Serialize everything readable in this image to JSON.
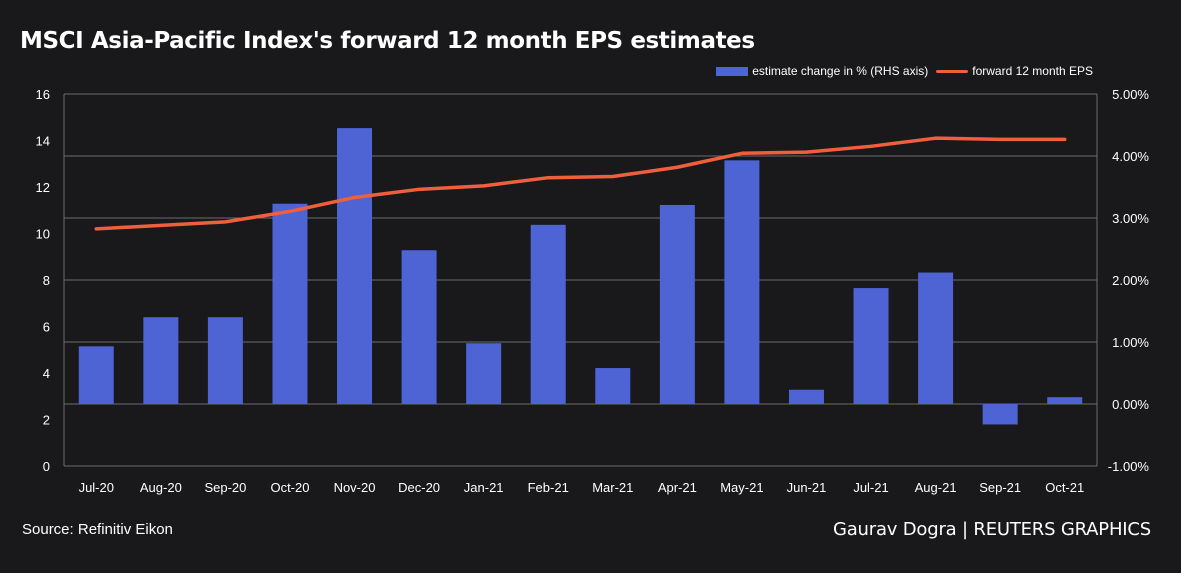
{
  "title": "MSCI Asia-Pacific Index's forward 12 month EPS estimates",
  "source": "Source: Refinitiv Eikon",
  "credit": "Gaurav Dogra | REUTERS GRAPHICS",
  "colors": {
    "background": "#19191c",
    "bar": "#4e63d4",
    "line": "#ef5f3b",
    "grid": "#6b6b70"
  },
  "chart_data": {
    "type": "bar+line",
    "title": "MSCI Asia-Pacific Index's forward 12 month EPS estimates",
    "categories": [
      "Jul-20",
      "Aug-20",
      "Sep-20",
      "Oct-20",
      "Nov-20",
      "Dec-20",
      "Jan-21",
      "Feb-21",
      "Mar-21",
      "Apr-21",
      "May-21",
      "Jun-21",
      "Jul-21",
      "Aug-21",
      "Sep-21",
      "Oct-21"
    ],
    "series": [
      {
        "name": "estimate change in % (RHS axis)",
        "type": "bar",
        "axis": "right",
        "values": [
          0.93,
          1.4,
          1.4,
          3.23,
          4.45,
          2.48,
          0.98,
          2.89,
          0.58,
          3.21,
          3.93,
          0.23,
          1.87,
          2.12,
          -0.33,
          0.11
        ]
      },
      {
        "name": "forward 12 month EPS",
        "type": "line",
        "axis": "left",
        "values": [
          10.2,
          10.35,
          10.5,
          10.95,
          11.55,
          11.9,
          12.05,
          12.4,
          12.45,
          12.85,
          13.45,
          13.5,
          13.75,
          14.1,
          14.05,
          14.05
        ]
      }
    ],
    "y_left": {
      "min": 0,
      "max": 16,
      "ticks": [
        "0",
        "2",
        "4",
        "6",
        "8",
        "10",
        "12",
        "14",
        "16"
      ]
    },
    "y_right": {
      "min": -1.0,
      "max": 5.0,
      "ticks": [
        "-1.00%",
        "0.00%",
        "1.00%",
        "2.00%",
        "3.00%",
        "4.00%",
        "5.00%"
      ]
    },
    "grid": "horizontal",
    "legend": "top-right"
  }
}
